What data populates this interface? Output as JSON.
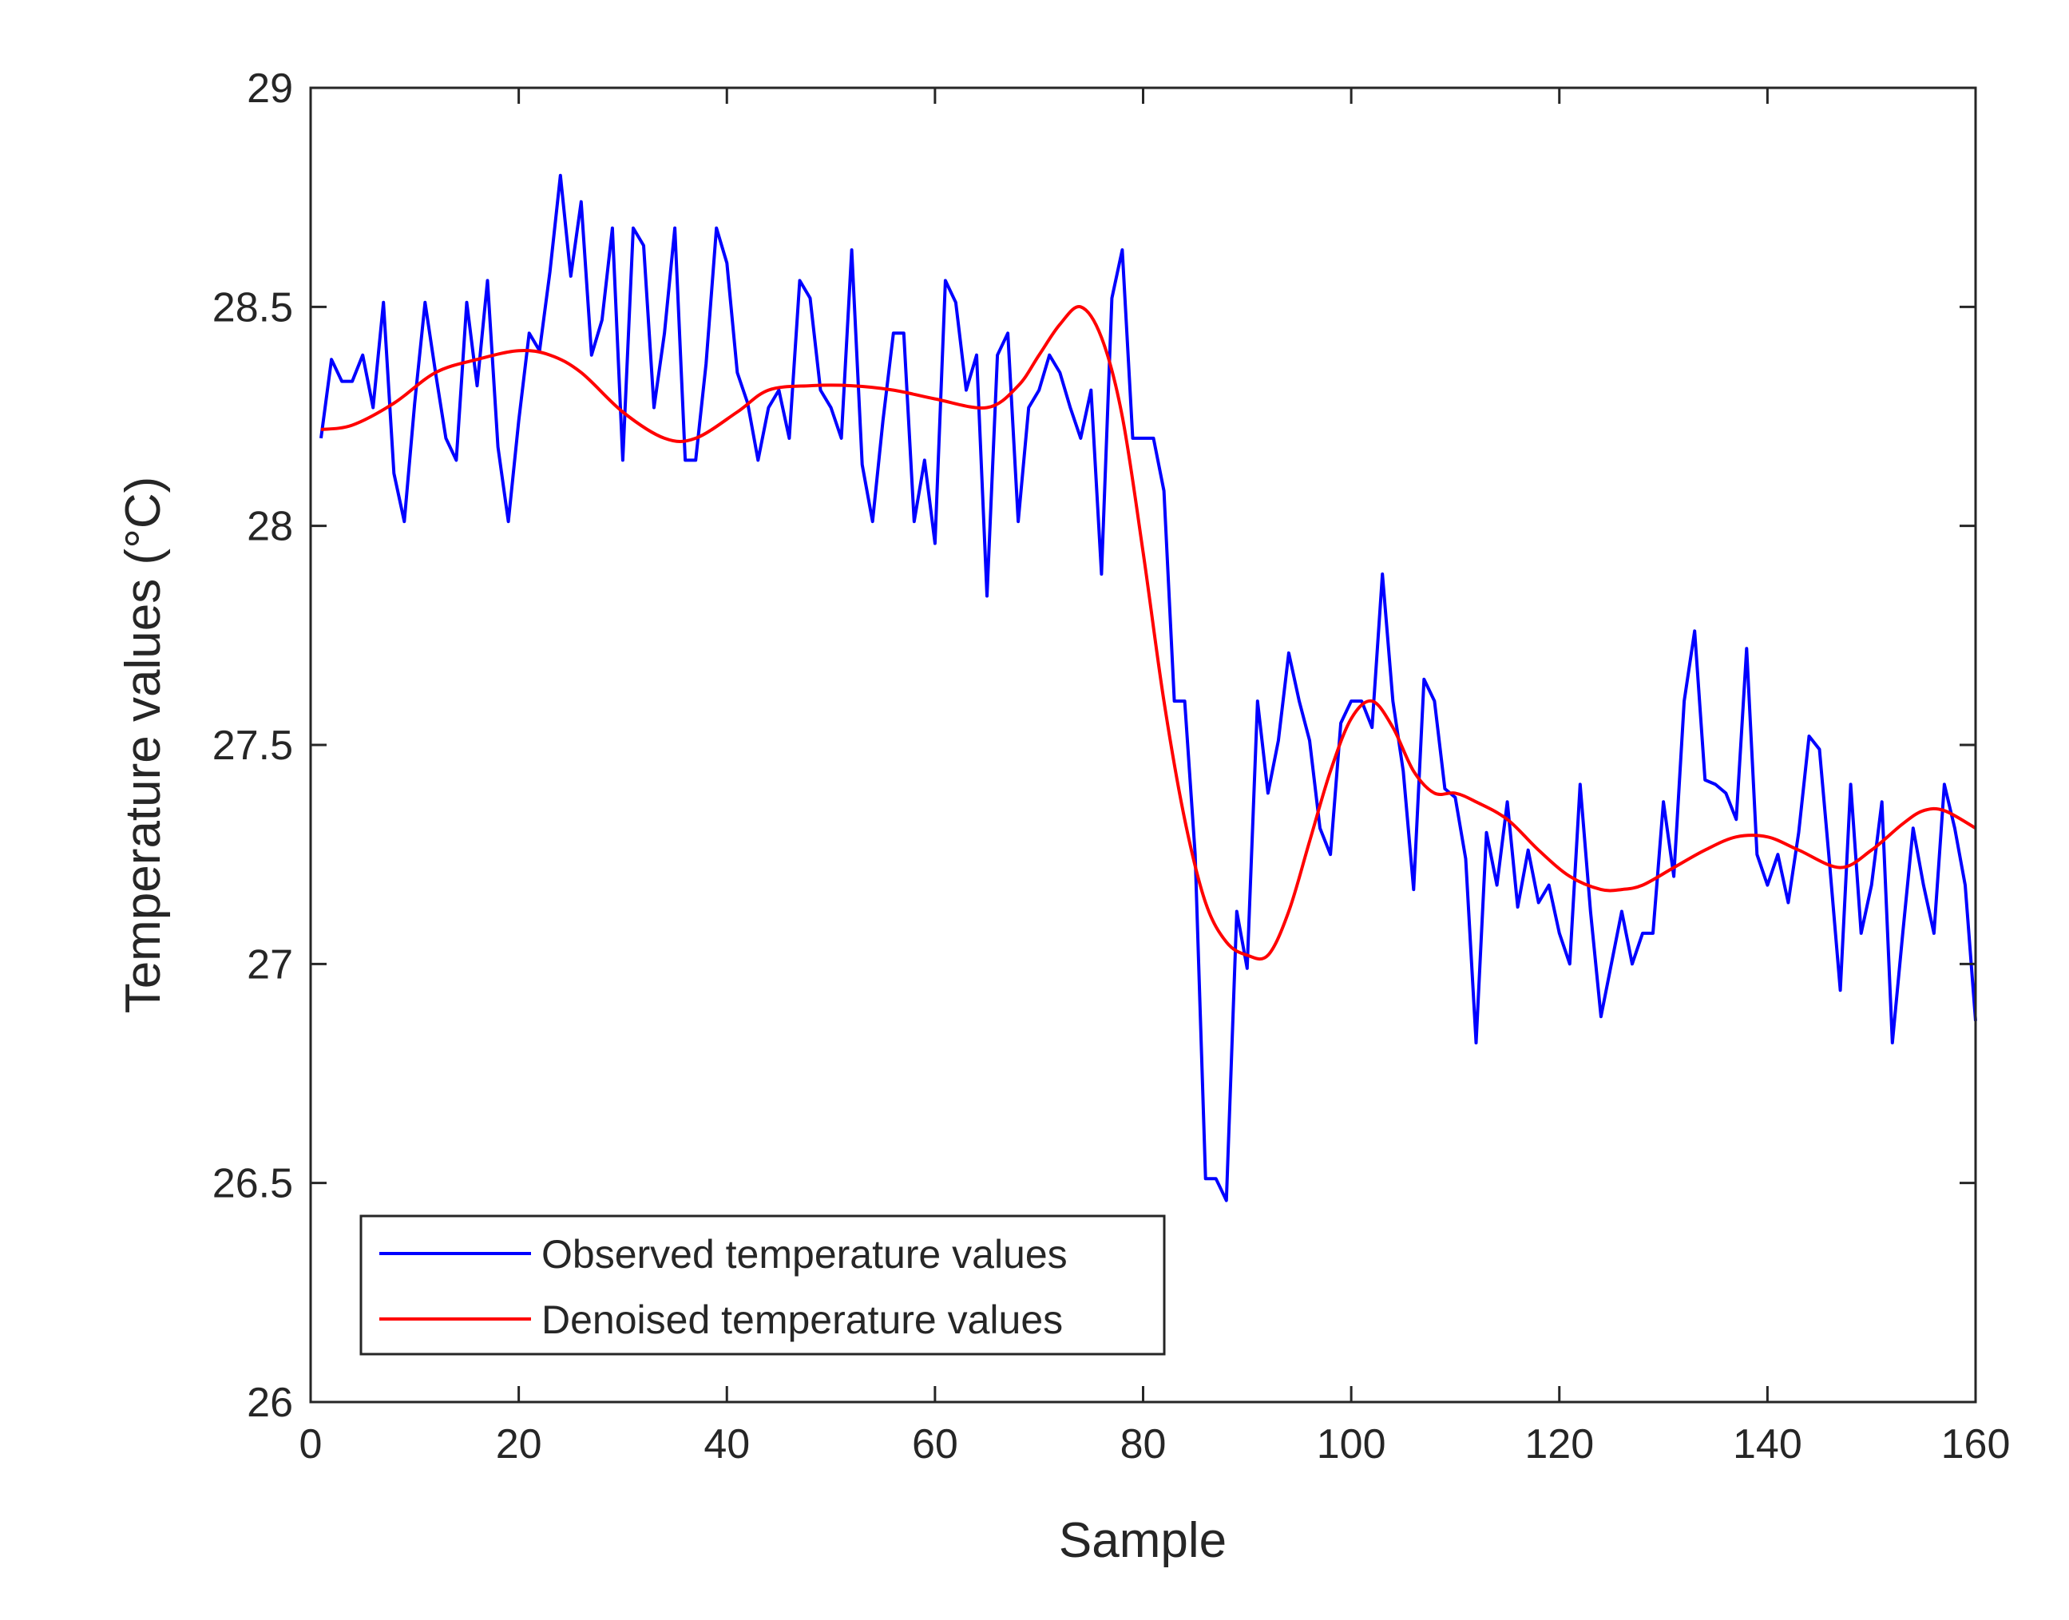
{
  "chart_data": {
    "type": "line",
    "xlabel": "Sample",
    "ylabel": "Temperature values (°C)",
    "xlim": [
      0,
      160
    ],
    "ylim": [
      26,
      29
    ],
    "xticks": [
      0,
      20,
      40,
      60,
      80,
      100,
      120,
      140,
      160
    ],
    "yticks": [
      26,
      26.5,
      27,
      27.5,
      28,
      28.5,
      29
    ],
    "grid": false,
    "legend": {
      "position": "bottom-left"
    },
    "series": [
      {
        "name": "Observed temperature values",
        "color": "#0000ff",
        "x": [
          1,
          2,
          3,
          4,
          5,
          6,
          7,
          8,
          9,
          10,
          11,
          12,
          13,
          14,
          15,
          16,
          17,
          18,
          19,
          20,
          21,
          22,
          23,
          24,
          25,
          26,
          27,
          28,
          29,
          30,
          31,
          32,
          33,
          34,
          35,
          36,
          37,
          38,
          39,
          40,
          41,
          42,
          43,
          44,
          45,
          46,
          47,
          48,
          49,
          50,
          51,
          52,
          53,
          54,
          55,
          56,
          57,
          58,
          59,
          60,
          61,
          62,
          63,
          64,
          65,
          66,
          67,
          68,
          69,
          70,
          71,
          72,
          73,
          74,
          75,
          76,
          77,
          78,
          79,
          80,
          81,
          82,
          83,
          84,
          85,
          86,
          87,
          88,
          89,
          90,
          91,
          92,
          93,
          94,
          95,
          96,
          97,
          98,
          99,
          100,
          101,
          102,
          103,
          104,
          105,
          106,
          107,
          108,
          109,
          110,
          111,
          112,
          113,
          114,
          115,
          116,
          117,
          118,
          119,
          120,
          121,
          122,
          123,
          124,
          125,
          126,
          127,
          128,
          129,
          130,
          131,
          132,
          133,
          134,
          135,
          136,
          137,
          138,
          139,
          140,
          141,
          142,
          143,
          144,
          145,
          146,
          147,
          148,
          149,
          150,
          151,
          152,
          153,
          154,
          155,
          156,
          157,
          158,
          159,
          160
        ],
        "y": [
          28.2,
          28.38,
          28.33,
          28.33,
          28.39,
          28.27,
          28.51,
          28.12,
          28.01,
          28.28,
          28.51,
          28.35,
          28.2,
          28.15,
          28.51,
          28.32,
          28.56,
          28.18,
          28.01,
          28.24,
          28.44,
          28.4,
          28.58,
          28.8,
          28.57,
          28.74,
          28.39,
          28.47,
          28.68,
          28.15,
          28.68,
          28.64,
          28.27,
          28.44,
          28.68,
          28.15,
          28.15,
          28.37,
          28.68,
          28.6,
          28.35,
          28.28,
          28.15,
          28.27,
          28.31,
          28.2,
          28.56,
          28.52,
          28.31,
          28.27,
          28.2,
          28.63,
          28.14,
          28.01,
          28.24,
          28.44,
          28.44,
          28.01,
          28.15,
          27.96,
          28.56,
          28.51,
          28.31,
          28.39,
          27.84,
          28.39,
          28.44,
          28.01,
          28.27,
          28.31,
          28.39,
          28.35,
          28.27,
          28.2,
          28.31,
          27.89,
          28.52,
          28.63,
          28.2,
          28.2,
          28.2,
          28.08,
          27.6,
          27.6,
          27.25,
          26.51,
          26.51,
          26.46,
          27.12,
          26.99,
          27.6,
          27.39,
          27.51,
          27.71,
          27.6,
          27.51,
          27.31,
          27.25,
          27.55,
          27.6,
          27.6,
          27.54,
          27.89,
          27.6,
          27.44,
          27.17,
          27.65,
          27.6,
          27.4,
          27.38,
          27.24,
          26.82,
          27.3,
          27.18,
          27.37,
          27.13,
          27.26,
          27.14,
          27.18,
          27.07,
          27.0,
          27.41,
          27.12,
          26.88,
          27.0,
          27.12,
          27.0,
          27.07,
          27.07,
          27.37,
          27.2,
          27.6,
          27.76,
          27.42,
          27.41,
          27.39,
          27.33,
          27.72,
          27.25,
          27.18,
          27.25,
          27.14,
          27.3,
          27.52,
          27.49,
          27.22,
          26.94,
          27.41,
          27.07,
          27.18,
          27.37,
          26.82,
          27.07,
          27.31,
          27.18,
          27.07,
          27.41,
          27.31,
          27.18,
          26.87
        ]
      },
      {
        "name": "Denoised temperature values",
        "color": "#ff0000",
        "x": [
          1,
          4,
          8,
          12,
          16,
          20,
          23,
          26,
          30,
          34,
          37,
          41,
          44,
          48,
          52,
          56,
          60,
          65,
          68,
          70,
          72,
          74,
          76,
          78,
          80,
          82,
          84,
          86,
          88,
          90,
          92,
          94,
          96,
          98,
          100,
          102,
          104,
          106,
          108,
          110,
          112,
          115,
          118,
          121,
          124,
          126,
          128,
          131,
          134,
          137,
          140,
          143,
          147,
          150,
          153,
          155,
          157,
          160
        ],
        "y": [
          28.22,
          28.23,
          28.28,
          28.35,
          28.38,
          28.4,
          28.39,
          28.35,
          28.26,
          28.2,
          28.2,
          28.26,
          28.31,
          28.32,
          28.32,
          28.31,
          28.29,
          28.27,
          28.32,
          28.39,
          28.46,
          28.5,
          28.43,
          28.25,
          27.94,
          27.6,
          27.33,
          27.14,
          27.05,
          27.02,
          27.02,
          27.12,
          27.28,
          27.44,
          27.56,
          27.6,
          27.54,
          27.44,
          27.39,
          27.39,
          27.37,
          27.33,
          27.26,
          27.2,
          27.17,
          27.17,
          27.18,
          27.22,
          27.26,
          27.29,
          27.29,
          27.26,
          27.22,
          27.26,
          27.32,
          27.35,
          27.35,
          27.31
        ]
      }
    ]
  }
}
